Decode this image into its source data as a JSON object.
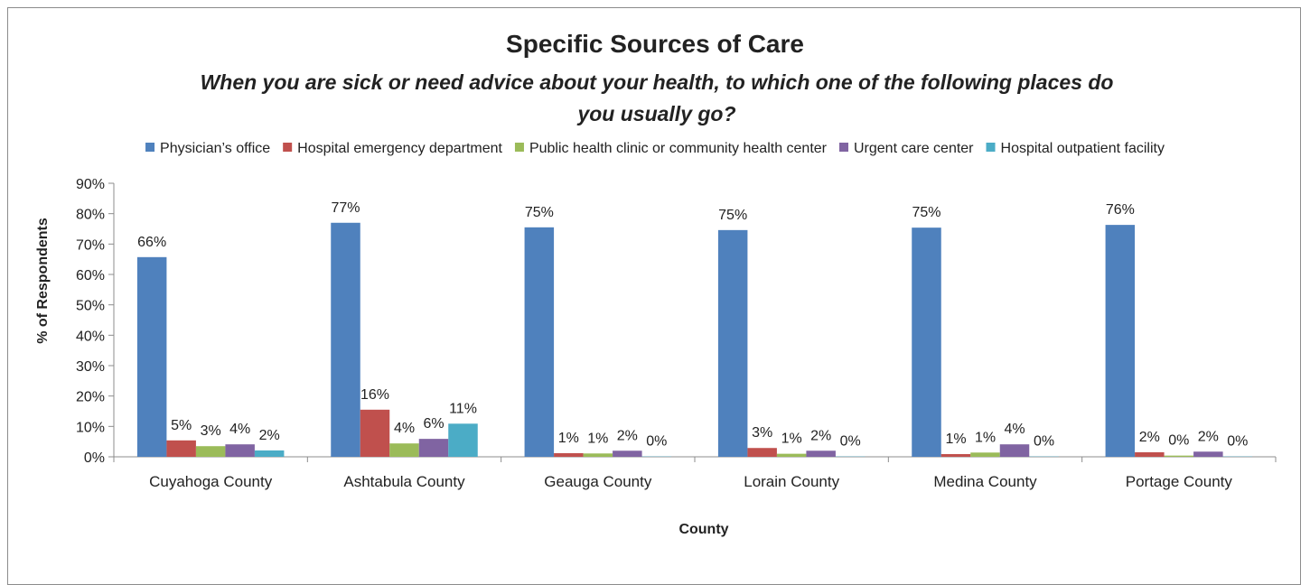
{
  "chart_data": {
    "type": "bar",
    "title": "Specific Sources of Care",
    "subtitle_lines": [
      "When you are sick or need advice about your health, to which one of the following places do",
      "you usually go?"
    ],
    "xlabel": "County",
    "ylabel": "% of Respondents",
    "ylim": [
      0,
      90
    ],
    "yticks": [
      0,
      10,
      20,
      30,
      40,
      50,
      60,
      70,
      80,
      90
    ],
    "ytick_labels": [
      "0%",
      "10%",
      "20%",
      "30%",
      "40%",
      "50%",
      "60%",
      "70%",
      "80%",
      "90%"
    ],
    "grid": false,
    "legend_position": "top",
    "categories": [
      "Cuyahoga County",
      "Ashtabula County",
      "Geauga County",
      "Lorain County",
      "Medina County",
      "Portage County"
    ],
    "series": [
      {
        "name": "Physician’s office",
        "color": "#4f81bd",
        "values": [
          65.7,
          77,
          75.5,
          74.6,
          75.4,
          76.3
        ],
        "labels": [
          "66%",
          "77%",
          "75%",
          "75%",
          "75%",
          "76%"
        ]
      },
      {
        "name": "Hospital emergency department",
        "color": "#c0504d",
        "values": [
          5.4,
          15.5,
          1.2,
          2.9,
          0.9,
          1.5
        ],
        "labels": [
          "5%",
          "16%",
          "1%",
          "3%",
          "1%",
          "2%"
        ]
      },
      {
        "name": "Public health clinic or community health center",
        "color": "#9bbb59",
        "values": [
          3.5,
          4.4,
          1.1,
          1.0,
          1.4,
          0.4
        ],
        "labels": [
          "3%",
          "4%",
          "1%",
          "1%",
          "1%",
          "0%"
        ]
      },
      {
        "name": "Urgent care center",
        "color": "#8064a2",
        "values": [
          4.1,
          5.9,
          2.0,
          2.0,
          4.1,
          1.7
        ],
        "labels": [
          "4%",
          "6%",
          "2%",
          "2%",
          "4%",
          "2%"
        ]
      },
      {
        "name": "Hospital outpatient facility",
        "color": "#4bacc6",
        "values": [
          2.1,
          10.9,
          0.1,
          0.1,
          0.1,
          0.1
        ],
        "labels": [
          "2%",
          "11%",
          "0%",
          "0%",
          "0%",
          "0%"
        ]
      }
    ]
  }
}
